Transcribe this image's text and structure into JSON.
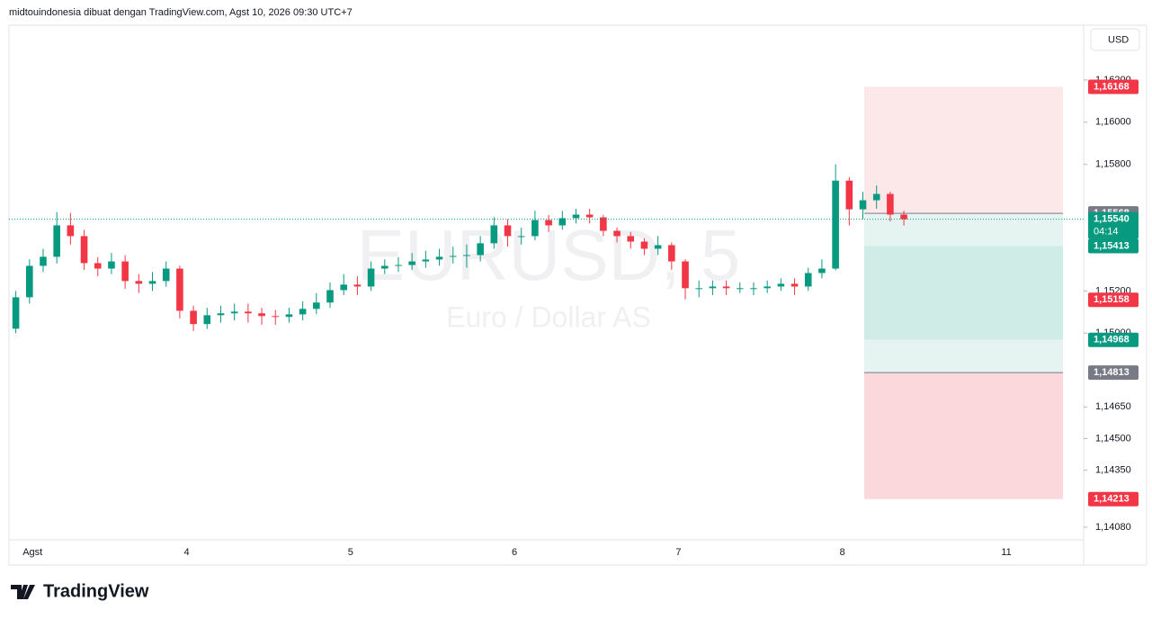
{
  "header": "midtouindonesia dibuat dengan TradingView.com, Agst 10, 2026 09:30 UTC+7",
  "currency_button": "USD",
  "logo": "TradingView",
  "chart_data": {
    "type": "candlestick",
    "watermark": "EURUSD, 5",
    "watermark_subtitle": "Euro / Dollar AS",
    "up_color": "#089981",
    "down_color": "#f23645",
    "categories": [
      null,
      "Agst",
      null,
      null,
      null,
      null,
      null,
      null,
      null,
      null,
      null,
      null,
      null,
      "4",
      null,
      null,
      null,
      null,
      null,
      null,
      null,
      null,
      null,
      null,
      null,
      "5",
      null,
      null,
      null,
      null,
      null,
      null,
      null,
      null,
      null,
      null,
      null,
      "6",
      null,
      null,
      null,
      null,
      null,
      null,
      null,
      null,
      null,
      null,
      null,
      "7",
      null,
      null,
      null,
      null,
      null,
      null,
      null,
      null,
      null,
      null,
      null,
      "8",
      null,
      null,
      null,
      null,
      null,
      null,
      null,
      null,
      null,
      null,
      null,
      "11",
      null,
      null,
      null,
      null
    ],
    "open": [
      1.15021,
      1.1517,
      1.15319,
      1.15362,
      1.15511,
      1.1546,
      1.15332,
      1.15306,
      1.1534,
      1.15247,
      1.15234,
      1.15247,
      1.15306,
      1.15106,
      1.15043,
      1.15085,
      1.15094,
      1.15102,
      1.15094,
      1.15081,
      1.15077,
      1.15089,
      1.15115,
      1.15145,
      1.15204,
      1.1523,
      1.15221,
      1.15306,
      1.15319,
      1.15323,
      1.1534,
      1.15349,
      1.15362,
      1.15366,
      1.1537,
      1.15426,
      1.15511,
      1.1546,
      1.1546,
      1.15536,
      1.15511,
      1.15545,
      1.15562,
      1.15549,
      1.15485,
      1.1546,
      1.15434,
      1.154,
      1.15417,
      1.1534,
      1.15213,
      1.15213,
      1.15221,
      1.15213,
      1.15213,
      1.15213,
      1.15221,
      1.15234,
      1.15221,
      1.15285,
      1.15306,
      1.15723,
      1.15587,
      1.1563,
      1.1566,
      1.15562,
      null,
      null,
      null,
      null,
      null,
      null,
      null,
      null,
      null,
      null,
      null,
      null
    ],
    "high": [
      1.152,
      1.1535,
      1.154,
      1.15574,
      1.1557,
      1.1549,
      1.1536,
      1.1538,
      1.1537,
      1.1528,
      1.1529,
      1.1534,
      1.1532,
      1.1513,
      1.1512,
      1.1513,
      1.1514,
      1.1514,
      1.1512,
      1.1511,
      1.1512,
      1.1515,
      1.1519,
      1.1524,
      1.1528,
      1.1527,
      1.1534,
      1.1535,
      1.1536,
      1.1538,
      1.1539,
      1.154,
      1.1541,
      1.1542,
      1.1546,
      1.1555,
      1.1554,
      1.155,
      1.1558,
      1.1556,
      1.1558,
      1.1559,
      1.1559,
      1.1556,
      1.155,
      1.1548,
      1.1545,
      1.1546,
      1.1543,
      1.1535,
      1.1525,
      1.1525,
      1.1525,
      1.1524,
      1.1524,
      1.1525,
      1.1526,
      1.1526,
      1.1531,
      1.1535,
      1.158,
      1.1574,
      1.1567,
      1.157,
      1.1567,
      1.1558,
      null,
      null,
      null,
      null,
      null,
      null,
      null,
      null,
      null,
      null,
      null,
      null
    ],
    "low": [
      1.15,
      1.1514,
      1.1529,
      1.1533,
      1.1542,
      1.153,
      1.1527,
      1.1528,
      1.1521,
      1.1519,
      1.152,
      1.1522,
      1.1507,
      1.1501,
      1.1502,
      1.1505,
      1.1506,
      1.1505,
      1.1504,
      1.1504,
      1.1505,
      1.1506,
      1.1509,
      1.1512,
      1.1518,
      1.1518,
      1.152,
      1.1528,
      1.1529,
      1.153,
      1.1531,
      1.1532,
      1.1533,
      1.1531,
      1.1534,
      1.154,
      1.1541,
      1.1542,
      1.1544,
      1.1548,
      1.1549,
      1.1552,
      1.1552,
      1.1546,
      1.1543,
      1.154,
      1.1537,
      1.1537,
      1.153,
      1.1516,
      1.1517,
      1.1518,
      1.1518,
      1.1519,
      1.1518,
      1.1519,
      1.152,
      1.1518,
      1.152,
      1.1526,
      1.15298,
      1.1551,
      1.1554,
      1.1559,
      1.1553,
      1.1551,
      null,
      null,
      null,
      null,
      null,
      null,
      null,
      null,
      null,
      null,
      null,
      null
    ],
    "close": [
      1.1517,
      1.15319,
      1.15362,
      1.15511,
      1.1546,
      1.15332,
      1.15306,
      1.1534,
      1.15247,
      1.15234,
      1.15247,
      1.15306,
      1.15106,
      1.15043,
      1.15085,
      1.15094,
      1.15102,
      1.15094,
      1.15081,
      1.15077,
      1.15089,
      1.15115,
      1.15145,
      1.15204,
      1.1523,
      1.15221,
      1.15306,
      1.15319,
      1.15323,
      1.1534,
      1.15349,
      1.15362,
      1.15366,
      1.1537,
      1.15426,
      1.15511,
      1.1546,
      1.1546,
      1.15536,
      1.15511,
      1.15545,
      1.15562,
      1.15549,
      1.15485,
      1.1546,
      1.15434,
      1.154,
      1.15417,
      1.1534,
      1.15213,
      1.15213,
      1.15221,
      1.15213,
      1.15213,
      1.15213,
      1.15221,
      1.15234,
      1.15221,
      1.15285,
      1.15306,
      1.15723,
      1.15587,
      1.1563,
      1.1566,
      1.15562,
      1.1554,
      null,
      null,
      null,
      null,
      null,
      null,
      null,
      null,
      null,
      null,
      null,
      null
    ],
    "ylim": [
      1.1402,
      1.1646
    ],
    "yticks": [
      {
        "value": 1.162,
        "label": "1,16200"
      },
      {
        "value": 1.16,
        "label": "1,16000"
      },
      {
        "value": 1.158,
        "label": "1,15800"
      },
      {
        "value": 1.152,
        "label": "1,15200"
      },
      {
        "value": 1.15,
        "label": "1,15000"
      },
      {
        "value": 1.1465,
        "label": "1,14650"
      },
      {
        "value": 1.145,
        "label": "1,14500"
      },
      {
        "value": 1.1435,
        "label": "1,14350"
      },
      {
        "value": 1.1408,
        "label": "1,14080"
      }
    ],
    "zones": [
      {
        "top": 1.16168,
        "bottom": 1.15568,
        "color": "#fde8e9"
      },
      {
        "top": 1.15568,
        "bottom": 1.15413,
        "color": "#e6f4f1"
      },
      {
        "top": 1.15413,
        "bottom": 1.14968,
        "color": "#d0ece6"
      },
      {
        "top": 1.14968,
        "bottom": 1.14813,
        "color": "#e6f4f1"
      },
      {
        "top": 1.14813,
        "bottom": 1.14213,
        "color": "#fbd8db"
      }
    ],
    "price_labels": [
      {
        "value": 1.16168,
        "label": "1,16168",
        "color": "#f23645"
      },
      {
        "value": 1.15568,
        "label": "1,15568",
        "color": "#787b86"
      },
      {
        "value": 1.1554,
        "label": "1,15540",
        "color": "#089981",
        "sub": "04:14"
      },
      {
        "value": 1.15413,
        "label": "1,15413",
        "color": "#089981"
      },
      {
        "value": 1.15158,
        "label": "1,15158",
        "color": "#f23645"
      },
      {
        "value": 1.14968,
        "label": "1,14968",
        "color": "#089981"
      },
      {
        "value": 1.14813,
        "label": "1,14813",
        "color": "#787b86"
      },
      {
        "value": 1.14213,
        "label": "1,14213",
        "color": "#f23645"
      }
    ]
  }
}
